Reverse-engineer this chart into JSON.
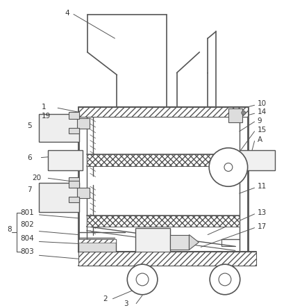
{
  "bg_color": "#ffffff",
  "line_color": "#555555",
  "label_color": "#333333",
  "fig_width": 4.22,
  "fig_height": 4.43
}
